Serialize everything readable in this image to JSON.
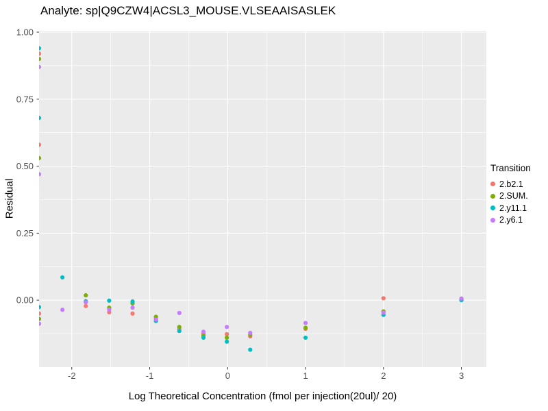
{
  "chart_data": {
    "type": "scatter",
    "title": "Analyte: sp|Q9CZW4|ACSL3_MOUSE.VLSEAAISASLEK",
    "xlabel": "Log Theoretical Concentration (fmol per injection(20ul)/ 20)",
    "ylabel": "Residual",
    "xlim": [
      -2.42,
      3.32
    ],
    "ylim": [
      -0.25,
      1.005
    ],
    "x_ticks": [
      -2,
      -1,
      0,
      1,
      2,
      3
    ],
    "x_tick_labels": [
      "-2",
      "-1",
      "0",
      "1",
      "2",
      "3"
    ],
    "x_minor": [
      -1.5,
      -0.5,
      0.5,
      1.5,
      2.5
    ],
    "y_ticks": [
      0.0,
      0.25,
      0.5,
      0.75,
      1.0
    ],
    "y_tick_labels": [
      "0.00",
      "0.25",
      "0.50",
      "0.75",
      "1.00"
    ],
    "y_minor": [
      -0.125,
      0.125,
      0.375,
      0.625,
      0.875
    ],
    "grid": true,
    "panel_bg": "#EBEBEB",
    "grid_color": "#FFFFFF",
    "tick_label_color": "#4D4D4D",
    "legend": {
      "title": "Transition",
      "position": "right"
    },
    "series": [
      {
        "name": "2.b2.1",
        "color": "#F8766D",
        "points": [
          [
            -2.42,
            0.92
          ],
          [
            -2.42,
            0.58
          ],
          [
            -2.42,
            -0.05
          ],
          [
            -1.82,
            -0.022
          ],
          [
            -1.52,
            -0.045
          ],
          [
            -1.22,
            -0.05
          ],
          [
            -0.92,
            -0.068
          ],
          [
            -0.62,
            -0.108
          ],
          [
            -0.31,
            -0.125
          ],
          [
            -0.01,
            -0.127
          ],
          [
            0.29,
            -0.135
          ],
          [
            1,
            -0.107
          ],
          [
            2,
            0.007
          ],
          [
            3,
            0.004
          ]
        ]
      },
      {
        "name": "2.SUM.",
        "color": "#7CAE00",
        "points": [
          [
            -2.42,
            0.9
          ],
          [
            -2.42,
            0.53
          ],
          [
            -2.42,
            -0.07
          ],
          [
            -1.82,
            0.018
          ],
          [
            -1.52,
            -0.028
          ],
          [
            -1.22,
            -0.012
          ],
          [
            -0.92,
            -0.062
          ],
          [
            -0.62,
            -0.1
          ],
          [
            -0.31,
            -0.132
          ],
          [
            -0.01,
            -0.14
          ],
          [
            0.29,
            -0.13
          ],
          [
            1,
            -0.103
          ],
          [
            2,
            -0.042
          ],
          [
            3,
            0.002
          ]
        ]
      },
      {
        "name": "2.y11.1",
        "color": "#00BFC4",
        "points": [
          [
            -2.42,
            0.94
          ],
          [
            -2.42,
            0.68
          ],
          [
            -2.42,
            -0.026
          ],
          [
            -2.12,
            0.085
          ],
          [
            -1.82,
            -0.004
          ],
          [
            -1.52,
            -0.002
          ],
          [
            -1.22,
            -0.005
          ],
          [
            -0.92,
            -0.078
          ],
          [
            -0.62,
            -0.115
          ],
          [
            -0.31,
            -0.14
          ],
          [
            -0.01,
            -0.155
          ],
          [
            0.29,
            -0.185
          ],
          [
            1,
            -0.14
          ],
          [
            2,
            -0.055
          ],
          [
            3,
            0.0
          ]
        ]
      },
      {
        "name": "2.y6.1",
        "color": "#C77CFF",
        "points": [
          [
            -2.42,
            0.87
          ],
          [
            -2.42,
            0.47
          ],
          [
            -2.42,
            -0.088
          ],
          [
            -2.12,
            -0.036
          ],
          [
            -1.82,
            -0.008
          ],
          [
            -1.52,
            -0.035
          ],
          [
            -1.22,
            -0.028
          ],
          [
            -0.92,
            -0.072
          ],
          [
            -0.62,
            -0.048
          ],
          [
            -0.31,
            -0.118
          ],
          [
            -0.01,
            -0.1
          ],
          [
            0.29,
            -0.122
          ],
          [
            1,
            -0.085
          ],
          [
            2,
            -0.046
          ],
          [
            3,
            0.006
          ]
        ]
      }
    ]
  }
}
